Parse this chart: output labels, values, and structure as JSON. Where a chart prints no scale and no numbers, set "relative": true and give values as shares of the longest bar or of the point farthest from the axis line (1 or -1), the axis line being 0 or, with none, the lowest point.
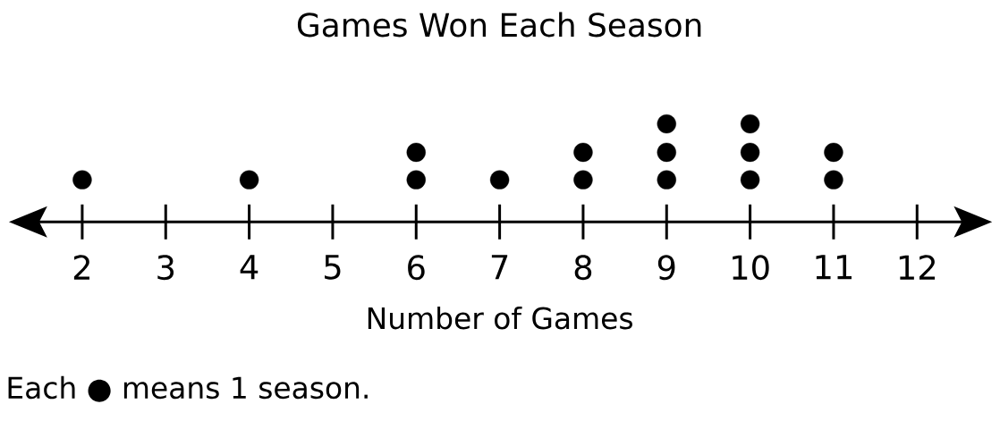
{
  "chart_data": {
    "type": "scatter",
    "title": "Games Won Each Season",
    "xlabel": "Number of Games",
    "x": [
      2,
      4,
      6,
      6,
      7,
      8,
      8,
      9,
      9,
      9,
      10,
      10,
      10,
      11,
      11
    ],
    "values": [
      0.43,
      0.43,
      0.43,
      0.71,
      0.43,
      0.43,
      0.71,
      0.43,
      0.71,
      1,
      0.43,
      0.71,
      1,
      0.43,
      0.71
    ],
    "relative": true,
    "color": "#000000",
    "xlim": [
      1.25,
      12.75
    ],
    "xticks": [
      2,
      3,
      4,
      5,
      6,
      7,
      8,
      9,
      10,
      11,
      12
    ],
    "tick_labels": "x",
    "annotations": [
      "Each ● means 1 season."
    ]
  }
}
